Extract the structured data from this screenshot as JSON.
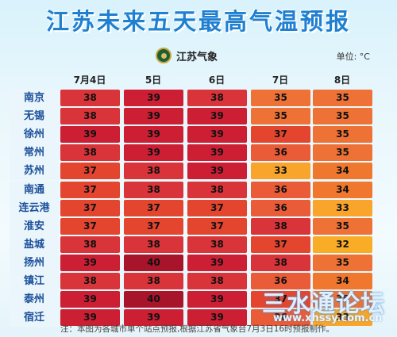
{
  "header": {
    "title": "江苏未来五天最高气温预报",
    "logo_text": "江苏气象",
    "unit": "单位: °C"
  },
  "footnote": "注：本图为各城市单个站点预报,根据江苏省气象台7月3日16时预报制作。",
  "watermark": {
    "text": "三水通论坛",
    "url": "www.xhssy.com.cn"
  },
  "colors": {
    "32": "#f9ad27",
    "33": "#f9a52b",
    "34": "#f0772e",
    "35": "#ee7236",
    "36": "#ea5b37",
    "37": "#e4452f",
    "38": "#d9343a",
    "39": "#cc1f34",
    "40": "#a8142a"
  },
  "chart_data": {
    "type": "table",
    "title": "江苏未来五天最高气温预报",
    "unit": "°C",
    "columns": [
      "7月4日",
      "5日",
      "6日",
      "7日",
      "8日"
    ],
    "rows": [
      {
        "city": "南京",
        "values": [
          38,
          39,
          38,
          35,
          35
        ]
      },
      {
        "city": "无锡",
        "values": [
          38,
          39,
          39,
          35,
          35
        ]
      },
      {
        "city": "徐州",
        "values": [
          39,
          39,
          39,
          37,
          35
        ]
      },
      {
        "city": "常州",
        "values": [
          38,
          39,
          39,
          36,
          35
        ]
      },
      {
        "city": "苏州",
        "values": [
          37,
          38,
          39,
          33,
          34
        ]
      },
      {
        "city": "南通",
        "values": [
          37,
          38,
          38,
          36,
          34
        ]
      },
      {
        "city": "连云港",
        "values": [
          37,
          37,
          37,
          36,
          33
        ]
      },
      {
        "city": "淮安",
        "values": [
          37,
          37,
          37,
          38,
          35
        ]
      },
      {
        "city": "盐城",
        "values": [
          38,
          38,
          38,
          37,
          32
        ]
      },
      {
        "city": "扬州",
        "values": [
          39,
          40,
          39,
          38,
          35
        ]
      },
      {
        "city": "镇江",
        "values": [
          38,
          38,
          38,
          36,
          34
        ]
      },
      {
        "city": "泰州",
        "values": [
          39,
          40,
          39,
          37,
          35
        ]
      },
      {
        "city": "宿迁",
        "values": [
          39,
          39,
          39,
          36,
          33
        ]
      }
    ]
  }
}
